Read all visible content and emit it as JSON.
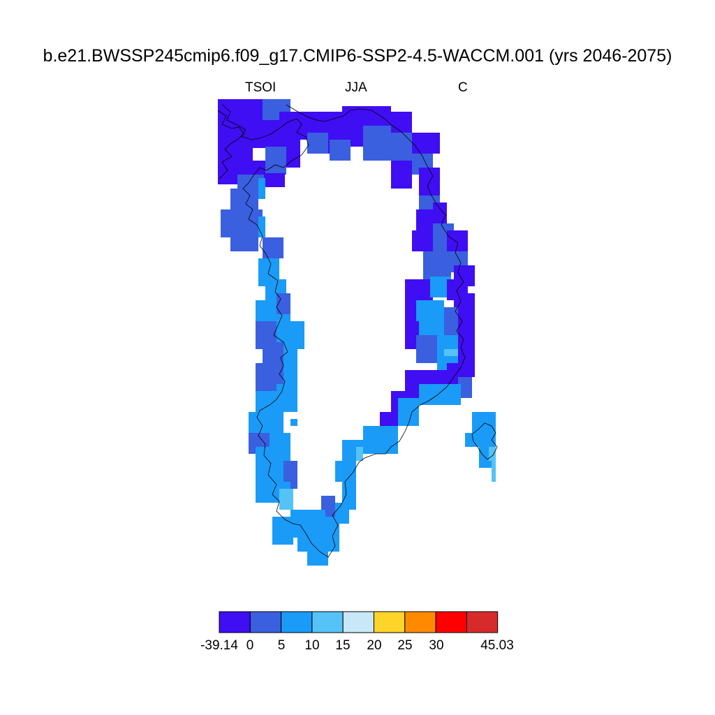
{
  "title": "b.e21.BWSSP245cmip6.f09_g17.CMIP6-SSP2-4.5-WACCM.001 (yrs 2046-2075)",
  "variable": "TSOI",
  "season": "JJA",
  "units": "C",
  "colors": {
    "c0": "#3f0ef2",
    "c1": "#3a5fdf",
    "c2": "#1a9bf7",
    "c3": "#55c3f7",
    "c4": "#c8e8f8",
    "c5": "#fed42a",
    "c6": "#ff8a00",
    "c7": "#ff0000",
    "c8": "#d72b2b"
  },
  "colorbar": {
    "labels": [
      "-39.14",
      "0",
      "5",
      "10",
      "15",
      "20",
      "25",
      "30",
      "45.03"
    ],
    "colors": [
      "#3f0ef2",
      "#3a5fdf",
      "#1a9bf7",
      "#55c3f7",
      "#c8e8f8",
      "#fed42a",
      "#ff8a00",
      "#ff0000",
      "#d72b2b"
    ]
  }
}
